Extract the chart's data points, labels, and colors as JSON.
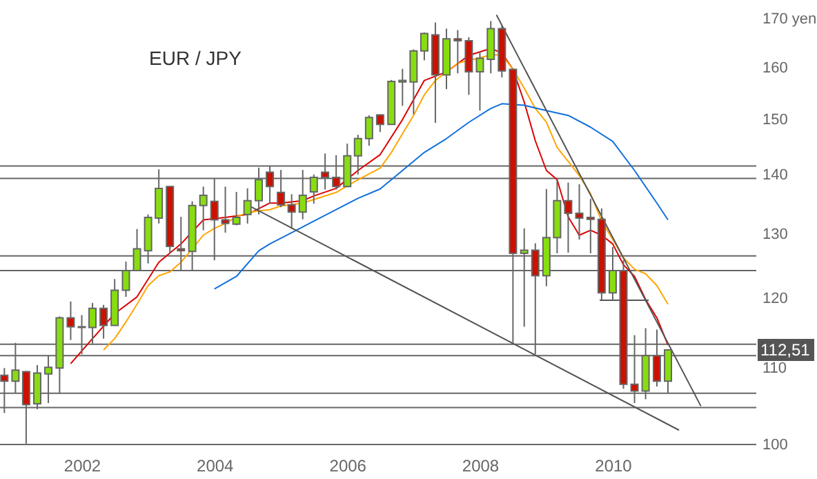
{
  "chart_data": {
    "type": "candlestick",
    "title": "EUR / JPY",
    "log": true,
    "xlim": [
      "2000-10-08",
      "2012-03"
    ],
    "xticks": [
      "2002",
      "2004",
      "2006",
      "2008",
      "2010"
    ],
    "ylim": [
      100,
      174
    ],
    "yticks": [
      100,
      110,
      120,
      130,
      140,
      150,
      160,
      {
        "value": 170,
        "label": "170 yen"
      }
    ],
    "x": [
      "2000-11",
      "2001-01",
      "2001-03",
      "2001-05",
      "2001-07",
      "2001-09",
      "2001-11",
      "2002-01",
      "2002-03",
      "2002-05",
      "2002-07",
      "2002-09",
      "2002-11",
      "2003-01",
      "2003-03",
      "2003-05",
      "2003-07",
      "2003-09",
      "2003-11",
      "2004-01",
      "2004-03",
      "2004-05",
      "2004-07",
      "2004-09",
      "2004-11",
      "2005-01",
      "2005-03",
      "2005-05",
      "2005-07",
      "2005-09",
      "2005-11",
      "2006-01",
      "2006-03",
      "2006-05",
      "2006-07",
      "2006-09",
      "2006-11",
      "2007-01",
      "2007-03",
      "2007-05",
      "2007-07",
      "2007-09",
      "2007-11",
      "2008-01",
      "2008-03",
      "2008-05",
      "2008-07",
      "2008-09",
      "2008-11",
      "2009-01",
      "2009-03",
      "2009-05",
      "2009-07",
      "2009-09",
      "2009-11",
      "2010-01",
      "2010-03",
      "2010-05",
      "2010-07",
      "2010-09",
      "2010-11"
    ],
    "ohlc": [
      [
        109.0,
        110.0,
        104.0,
        108.2
      ],
      [
        108.2,
        113.5,
        106.6,
        109.7
      ],
      [
        109.5,
        109.6,
        100.1,
        105.1
      ],
      [
        105.2,
        110.4,
        104.5,
        109.3
      ],
      [
        109.2,
        111.7,
        105.3,
        110.1
      ],
      [
        110.0,
        117.3,
        106.5,
        117.1
      ],
      [
        117.1,
        119.5,
        113.9,
        115.8
      ],
      [
        115.8,
        117.5,
        111.9,
        115.7
      ],
      [
        115.7,
        119.3,
        113.4,
        118.5
      ],
      [
        118.5,
        119.0,
        114.1,
        116.0
      ],
      [
        116.0,
        122.9,
        116.0,
        121.2
      ],
      [
        121.2,
        125.6,
        120.2,
        124.2
      ],
      [
        124.2,
        130.8,
        124.2,
        127.6
      ],
      [
        127.3,
        133.2,
        125.3,
        132.7
      ],
      [
        132.6,
        140.9,
        131.7,
        137.6
      ],
      [
        137.9,
        138.0,
        126.9,
        128.0
      ],
      [
        127.6,
        132.8,
        124.1,
        127.3
      ],
      [
        127.2,
        135.4,
        124.1,
        134.7
      ],
      [
        134.7,
        137.9,
        130.6,
        136.4
      ],
      [
        135.4,
        139.3,
        125.8,
        132.3
      ],
      [
        132.3,
        137.9,
        130.2,
        131.7
      ],
      [
        131.6,
        137.0,
        131.4,
        132.7
      ],
      [
        133.2,
        137.6,
        131.7,
        135.5
      ],
      [
        135.5,
        141.2,
        133.2,
        139.1
      ],
      [
        140.4,
        141.5,
        135.0,
        137.9
      ],
      [
        136.9,
        140.8,
        134.4,
        134.8
      ],
      [
        134.8,
        136.6,
        130.8,
        133.6
      ],
      [
        133.6,
        140.8,
        132.4,
        136.4
      ],
      [
        137.0,
        140.0,
        135.0,
        139.5
      ],
      [
        140.4,
        143.7,
        137.4,
        139.5
      ],
      [
        139.5,
        143.4,
        137.4,
        137.9
      ],
      [
        137.9,
        145.5,
        137.8,
        143.3
      ],
      [
        143.3,
        147.1,
        140.0,
        146.4
      ],
      [
        146.4,
        150.7,
        145.1,
        150.3
      ],
      [
        150.8,
        150.9,
        147.6,
        149.0
      ],
      [
        149.0,
        157.5,
        149.0,
        157.2
      ],
      [
        157.1,
        159.7,
        152.5,
        157.4
      ],
      [
        157.1,
        163.6,
        150.9,
        163.3
      ],
      [
        163.3,
        167.1,
        161.4,
        166.9
      ],
      [
        166.6,
        169.2,
        149.3,
        158.5
      ],
      [
        158.5,
        167.9,
        155.7,
        165.8
      ],
      [
        165.8,
        167.6,
        158.8,
        165.4
      ],
      [
        165.4,
        166.1,
        154.6,
        159.1
      ],
      [
        159.1,
        163.2,
        151.6,
        161.8
      ],
      [
        161.6,
        169.5,
        158.8,
        167.9
      ],
      [
        167.9,
        168.5,
        158.0,
        159.3
      ],
      [
        159.6,
        159.8,
        113.5,
        126.9
      ],
      [
        126.9,
        130.9,
        115.8,
        127.4
      ],
      [
        127.4,
        128.5,
        111.9,
        123.4
      ],
      [
        123.4,
        137.5,
        121.8,
        129.4
      ],
      [
        129.4,
        139.1,
        126.9,
        135.5
      ],
      [
        135.5,
        138.6,
        127.0,
        133.4
      ],
      [
        133.4,
        138.3,
        129.1,
        132.6
      ],
      [
        132.7,
        135.8,
        126.9,
        132.4
      ],
      [
        132.4,
        134.2,
        119.7,
        120.8
      ],
      [
        120.8,
        127.9,
        119.7,
        124.2
      ],
      [
        124.2,
        125.8,
        107.2,
        107.8
      ],
      [
        107.8,
        114.6,
        105.3,
        106.9
      ],
      [
        106.9,
        115.6,
        105.8,
        111.7
      ],
      [
        111.7,
        115.4,
        107.5,
        108.2
      ],
      [
        108.2,
        112.6,
        106.6,
        112.51
      ]
    ],
    "colors": [
      "#cc1100",
      "#88dd11",
      "#cc1100",
      "#88dd11",
      "#88dd11",
      "#88dd11",
      "#cc1100",
      "#cc1100",
      "#88dd11",
      "#cc1100",
      "#88dd11",
      "#88dd11",
      "#88dd11",
      "#88dd11",
      "#88dd11",
      "#cc1100",
      "#cc1100",
      "#88dd11",
      "#88dd11",
      "#cc1100",
      "#cc1100",
      "#88dd11",
      "#88dd11",
      "#88dd11",
      "#cc1100",
      "#cc1100",
      "#cc1100",
      "#88dd11",
      "#88dd11",
      "#cc1100",
      "#cc1100",
      "#88dd11",
      "#88dd11",
      "#88dd11",
      "#cc1100",
      "#88dd11",
      "#88dd11",
      "#88dd11",
      "#88dd11",
      "#cc1100",
      "#88dd11",
      "#cc1100",
      "#cc1100",
      "#88dd11",
      "#88dd11",
      "#cc1100",
      "#cc1100",
      "#88dd11",
      "#cc1100",
      "#88dd11",
      "#88dd11",
      "#cc1100",
      "#cc1100",
      "#cc1100",
      "#cc1100",
      "#88dd11",
      "#cc1100",
      "#cc1100",
      "#88dd11",
      "#cc1100",
      "#88dd11"
    ],
    "series": [
      {
        "type": "line",
        "color": "#dd0000",
        "x": [
          "2001-11",
          "2002-03",
          "2002-07",
          "2002-11",
          "2003-03",
          "2003-07",
          "2003-11",
          "2004-03",
          "2004-07",
          "2004-11",
          "2005-01",
          "2005-05",
          "2005-07",
          "2005-11",
          "2006-03",
          "2006-07",
          "2006-11",
          "2007-03",
          "2007-07",
          "2007-11",
          "2008-03",
          "2008-05",
          "2008-07",
          "2008-09",
          "2008-11",
          "2009-01",
          "2009-03",
          "2009-05",
          "2009-07",
          "2009-09",
          "2009-11",
          "2010-01",
          "2010-03",
          "2010-05",
          "2010-07",
          "2010-09",
          "2010-11"
        ],
        "values": [
          110.6,
          114.1,
          117.7,
          120.2,
          125.5,
          128.4,
          132.3,
          132.7,
          133.2,
          135.1,
          135.1,
          135.5,
          136.3,
          137.6,
          140.7,
          143.5,
          149.9,
          157.4,
          159.1,
          162.4,
          163.8,
          162.9,
          159.6,
          153.2,
          146.0,
          140.7,
          139.1,
          132.8,
          129.8,
          130.6,
          129.8,
          128.4,
          125.1,
          123.3,
          119.8,
          117.1,
          113.2
        ]
      },
      {
        "type": "line",
        "color": "#ffa500",
        "x": [
          "2002-05",
          "2002-07",
          "2002-09",
          "2002-11",
          "2003-01",
          "2003-03",
          "2003-05",
          "2003-07",
          "2003-09",
          "2003-11",
          "2004-01",
          "2004-03",
          "2004-05",
          "2004-07",
          "2004-09",
          "2004-11",
          "2005-01",
          "2005-05",
          "2005-11",
          "2006-03",
          "2006-07",
          "2006-09",
          "2006-11",
          "2007-01",
          "2007-03",
          "2007-05",
          "2007-07",
          "2007-09",
          "2007-11",
          "2008-01",
          "2008-03",
          "2008-05",
          "2008-07",
          "2008-09",
          "2008-11",
          "2009-01",
          "2009-03",
          "2009-05",
          "2009-07",
          "2009-09",
          "2009-11",
          "2010-01",
          "2010-03",
          "2010-05",
          "2010-07",
          "2010-09",
          "2010-11"
        ],
        "values": [
          112.5,
          114.1,
          116.5,
          119.1,
          121.9,
          123.4,
          124.0,
          125.5,
          127.6,
          129.8,
          130.9,
          131.7,
          132.8,
          133.5,
          133.8,
          134.0,
          134.6,
          135.1,
          136.9,
          139.1,
          141.1,
          143.9,
          147.3,
          150.7,
          154.6,
          157.4,
          159.1,
          160.8,
          161.4,
          161.9,
          162.5,
          162.5,
          159.6,
          155.9,
          152.0,
          149.4,
          144.8,
          142.3,
          139.8,
          136.7,
          132.1,
          129.1,
          126.2,
          124.4,
          123.7,
          121.9,
          119.1
        ]
      },
      {
        "type": "line",
        "color": "#1070dd",
        "x": [
          "2004-01",
          "2004-05",
          "2004-09",
          "2004-11",
          "2005-03",
          "2005-07",
          "2005-11",
          "2006-03",
          "2006-07",
          "2006-11",
          "2007-03",
          "2007-07",
          "2007-11",
          "2008-03",
          "2008-05",
          "2008-09",
          "2009-01",
          "2009-05",
          "2009-09",
          "2010-01",
          "2010-05",
          "2010-09",
          "2010-11"
        ],
        "values": [
          121.4,
          123.3,
          127.3,
          128.4,
          130.2,
          132.1,
          134.0,
          135.9,
          137.5,
          140.7,
          143.9,
          146.4,
          149.4,
          152.0,
          152.9,
          152.6,
          151.6,
          150.7,
          148.5,
          145.9,
          140.7,
          135.1,
          132.3
        ]
      },
      {
        "type": "line",
        "color": "#555555",
        "x": [
          "2004-07",
          "2011-01"
        ],
        "values": [
          134.8,
          101.8
        ]
      },
      {
        "type": "line",
        "color": "#555555",
        "x": [
          "2008-04",
          "2011-05"
        ],
        "values": [
          170.8,
          104.9
        ]
      },
      {
        "type": "line",
        "color": "#555555",
        "x": [
          "2009-10-21",
          "2010-07-18"
        ],
        "values": [
          119.7,
          119.7
        ]
      }
    ],
    "ref_lines": [
      {
        "axis": "y",
        "value": 141.5,
        "color": "#666666"
      },
      {
        "axis": "y",
        "value": 139.3,
        "color": "#666666"
      },
      {
        "axis": "y",
        "value": 126.5,
        "color": "#666666"
      },
      {
        "axis": "y",
        "value": 124.2,
        "color": "#666666"
      },
      {
        "axis": "y",
        "value": 113.3,
        "color": "#666666"
      },
      {
        "axis": "y",
        "value": 111.7,
        "color": "#666666"
      },
      {
        "axis": "y",
        "value": 106.6,
        "color": "#666666"
      },
      {
        "axis": "y",
        "value": 104.7,
        "color": "#666666"
      },
      {
        "axis": "y",
        "value": 100,
        "color": "#666666"
      }
    ],
    "annotations": [
      {
        "text": "112,51",
        "y": 112.51
      }
    ]
  }
}
